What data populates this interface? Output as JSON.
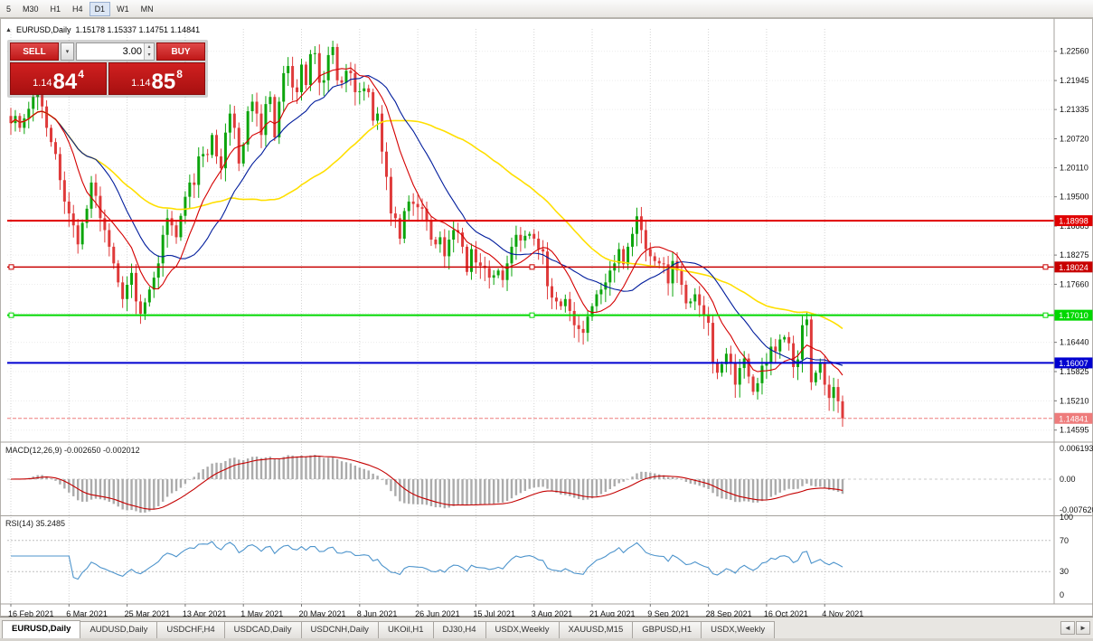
{
  "toolbar": {
    "timeframes": [
      {
        "label": "5",
        "active": false
      },
      {
        "label": "M30",
        "active": false
      },
      {
        "label": "H1",
        "active": false
      },
      {
        "label": "H4",
        "active": false
      },
      {
        "label": "D1",
        "active": true
      },
      {
        "label": "W1",
        "active": false
      },
      {
        "label": "MN",
        "active": false
      }
    ]
  },
  "chart_header": {
    "symbol": "EURUSD,Daily",
    "ohlc": "1.15178 1.15337 1.14751 1.14841",
    "collapse_icon": "▲"
  },
  "trade_panel": {
    "sell_label": "SELL",
    "buy_label": "BUY",
    "volume": "3.00",
    "dropdown_icon": "▾",
    "spin_up_icon": "▴",
    "spin_down_icon": "▾",
    "sell_price": {
      "prefix": "1.14",
      "big": "84",
      "sup": "4"
    },
    "buy_price": {
      "prefix": "1.14",
      "big": "85",
      "sup": "8"
    }
  },
  "chart_data": {
    "type": "candlestick",
    "symbol": "EURUSD",
    "timeframe": "Daily",
    "candles_per_label": 13,
    "x_labels": [
      "16 Feb 2021",
      "6 Mar 2021",
      "25 Mar 2021",
      "13 Apr 2021",
      "1 May 2021",
      "20 May 2021",
      "8 Jun 2021",
      "26 Jun 2021",
      "15 Jul 2021",
      "3 Aug 2021",
      "21 Aug 2021",
      "9 Sep 2021",
      "28 Sep 2021",
      "16 Oct 2021",
      "4 Nov 2021"
    ],
    "price_ticks": [
      "1.22560",
      "1.21945",
      "1.21335",
      "1.20720",
      "1.20110",
      "1.19500",
      "1.18885",
      "1.18275",
      "1.17660",
      "1.17050",
      "1.16440",
      "1.15825",
      "1.15210",
      "1.14595"
    ],
    "y_range": [
      1.1438,
      1.2303
    ],
    "colors": {
      "up": "#0CA50C",
      "down": "#DF3A3A"
    },
    "closes": [
      1.2105,
      1.212,
      1.2095,
      1.2115,
      1.2135,
      1.216,
      1.2168,
      1.214,
      1.2095,
      1.2065,
      1.204,
      1.1985,
      1.194,
      1.1915,
      1.189,
      1.185,
      1.1895,
      1.1925,
      1.198,
      1.1952,
      1.1905,
      1.188,
      1.1845,
      1.181,
      1.177,
      1.1735,
      1.1765,
      1.179,
      1.173,
      1.1704,
      1.1728,
      1.1755,
      1.178,
      1.181,
      1.187,
      1.1905,
      1.189,
      1.1865,
      1.191,
      1.195,
      1.198,
      1.1975,
      1.2035,
      1.204,
      1.2038,
      1.208,
      1.2035,
      1.201,
      1.2085,
      1.2125,
      1.2095,
      1.202,
      1.206,
      1.213,
      1.215,
      1.2125,
      1.208,
      1.2145,
      1.216,
      1.2075,
      1.215,
      1.221,
      1.2225,
      1.218,
      1.217,
      1.2228,
      1.2185,
      1.225,
      1.2252,
      1.219,
      1.2195,
      1.2248,
      1.2265,
      1.2195,
      1.219,
      1.2215,
      1.221,
      1.217,
      1.2172,
      1.2178,
      1.217,
      1.211,
      1.2125,
      1.2045,
      1.1992,
      1.1915,
      1.1905,
      1.1862,
      1.192,
      1.194,
      1.1935,
      1.1928,
      1.1925,
      1.19,
      1.186,
      1.185,
      1.1865,
      1.1825,
      1.186,
      1.188,
      1.1875,
      1.1845,
      1.1792,
      1.184,
      1.1812,
      1.1805,
      1.18,
      1.178,
      1.1785,
      1.1795,
      1.1775,
      1.181,
      1.1845,
      1.187,
      1.1858,
      1.1868,
      1.1872,
      1.1862,
      1.184,
      1.1835,
      1.1762,
      1.1738,
      1.173,
      1.172,
      1.1735,
      1.171,
      1.168,
      1.1672,
      1.1664,
      1.1698,
      1.172,
      1.1745,
      1.1755,
      1.177,
      1.1795,
      1.181,
      1.184,
      1.1808,
      1.1845,
      1.1872,
      1.1909,
      1.188,
      1.184,
      1.1825,
      1.1815,
      1.181,
      1.1808,
      1.1768,
      1.1815,
      1.1795,
      1.1765,
      1.1726,
      1.173,
      1.1745,
      1.1722,
      1.17,
      1.1685,
      1.16,
      1.158,
      1.1598,
      1.162,
      1.16,
      1.1555,
      1.159,
      1.161,
      1.1572,
      1.154,
      1.1558,
      1.1595,
      1.1602,
      1.1635,
      1.1625,
      1.165,
      1.1655,
      1.1642,
      1.1592,
      1.1608,
      1.168,
      1.1692,
      1.156,
      1.158,
      1.16,
      1.1555,
      1.1527,
      1.155,
      1.152,
      1.1484
    ],
    "moving_averages": [
      {
        "period": 50,
        "type": "sma",
        "color": "#FFDF00"
      },
      {
        "period": 20,
        "type": "sma",
        "color": "#001C9C"
      },
      {
        "period": 10,
        "type": "sma",
        "color": "#D40000"
      }
    ],
    "hlines": [
      {
        "value": 1.18998,
        "label": "1.18998",
        "color": "#E00000",
        "width": 2,
        "selected": false
      },
      {
        "value": 1.18024,
        "label": "1.18024",
        "color": "#C80000",
        "width": 1.5,
        "selected": true
      },
      {
        "value": 1.1701,
        "label": "1.17010",
        "color": "#00D800",
        "width": 2,
        "selected": true
      },
      {
        "value": 1.16007,
        "label": "1.16007",
        "color": "#0000D0",
        "width": 2,
        "selected": false
      }
    ],
    "last_price": {
      "value": 1.14841,
      "label": "1.14841",
      "color": "#EE7C7C"
    },
    "macd": {
      "label": "MACD(12,26,9) -0.002650 -0.002012",
      "fast": 12,
      "slow": 26,
      "signal": 9,
      "axis_ticks": [
        "0.0061930",
        "0.00",
        "-0.0076200"
      ],
      "histogram_color": "#ABABAB",
      "signal_color": "#C40000"
    },
    "rsi": {
      "label": "RSI(14) 35.2485",
      "period": 14,
      "axis_ticks": [
        "100",
        "70",
        "30",
        "0"
      ],
      "levels": [
        70,
        30
      ],
      "color": "#4D94CC"
    }
  },
  "tabs": [
    {
      "label": "EURUSD,Daily",
      "active": true
    },
    {
      "label": "AUDUSD,Daily",
      "active": false
    },
    {
      "label": "USDCHF,H4",
      "active": false
    },
    {
      "label": "USDCAD,Daily",
      "active": false
    },
    {
      "label": "USDCNH,Daily",
      "active": false
    },
    {
      "label": "UKOil,H1",
      "active": false
    },
    {
      "label": "DJ30,H4",
      "active": false
    },
    {
      "label": "USDX,Weekly",
      "active": false
    },
    {
      "label": "XAUUSD,M15",
      "active": false
    },
    {
      "label": "GBPUSD,H1",
      "active": false
    },
    {
      "label": "USDX,Weekly",
      "active": false
    }
  ],
  "tab_scroll": {
    "left": "◄",
    "right": "►"
  }
}
